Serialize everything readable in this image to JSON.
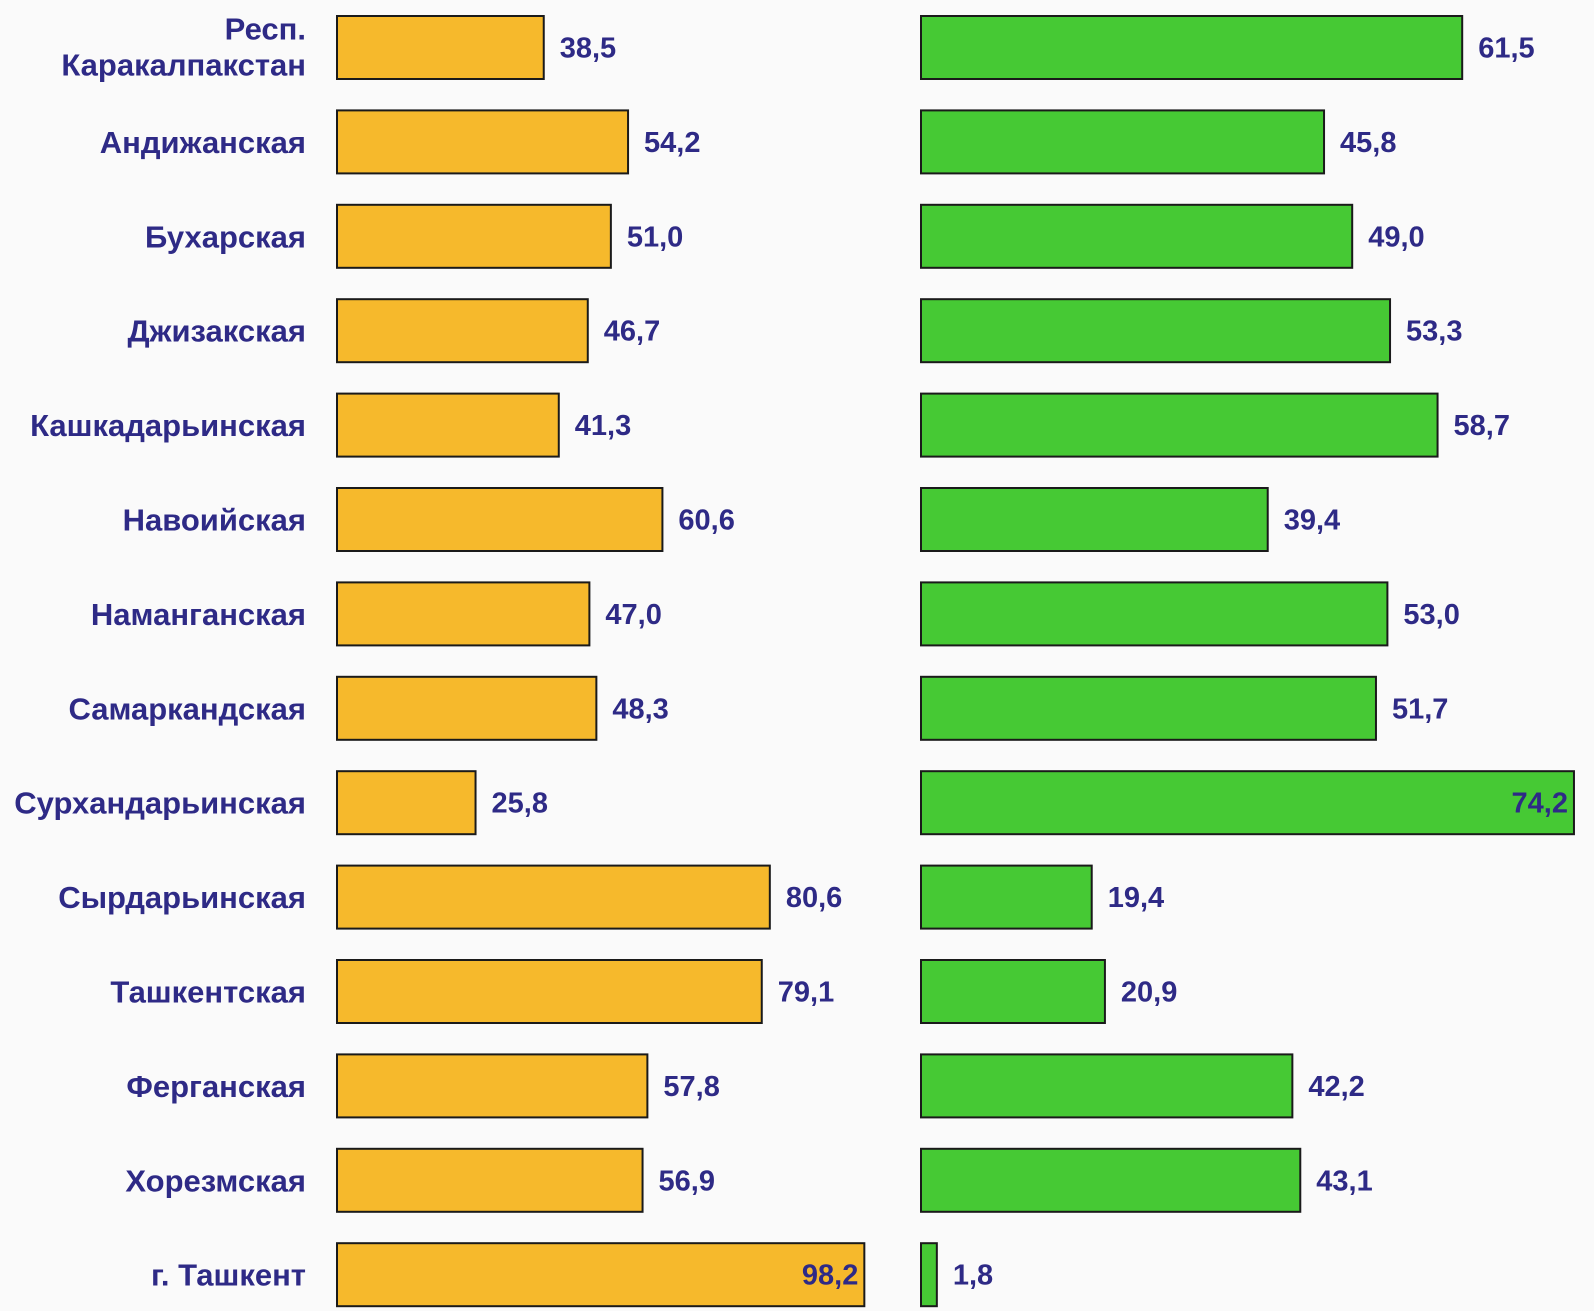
{
  "chart_data": {
    "type": "bar",
    "orientation": "horizontal",
    "categories": [
      [
        "Респ.",
        "Каракалпакстан"
      ],
      [
        "Андижанская"
      ],
      [
        "Бухарская"
      ],
      [
        "Джизакская"
      ],
      [
        "Кашкадарьинская"
      ],
      [
        "Навоийская"
      ],
      [
        "Наманганская"
      ],
      [
        "Самаркандская"
      ],
      [
        "Сурхандарьинская"
      ],
      [
        "Сырдарьинская"
      ],
      [
        "Ташкентская"
      ],
      [
        "Ферганская"
      ],
      [
        "Хорезмская"
      ],
      [
        "г. Ташкент"
      ]
    ],
    "series": [
      {
        "color": "#f6b92c",
        "values": [
          38.5,
          54.2,
          51.0,
          46.7,
          41.3,
          60.6,
          47.0,
          48.3,
          25.8,
          80.6,
          79.1,
          57.8,
          56.9,
          98.2
        ],
        "labels": [
          "38,5",
          "54,2",
          "51,0",
          "46,7",
          "41,3",
          "60,6",
          "47,0",
          "48,3",
          "25,8",
          "80,6",
          "79,1",
          "57,8",
          "56,9",
          "98,2"
        ]
      },
      {
        "color": "#46c934",
        "values": [
          61.5,
          45.8,
          49.0,
          53.3,
          58.7,
          39.4,
          53.0,
          51.7,
          74.2,
          19.4,
          20.9,
          42.2,
          43.1,
          1.8
        ],
        "labels": [
          "61,5",
          "45,8",
          "49,0",
          "53,3",
          "58,7",
          "39,4",
          "53,0",
          "51,7",
          "74,2",
          "19,4",
          "20,9",
          "42,2",
          "43,1",
          "1,8"
        ]
      }
    ],
    "xlim": [
      0,
      100
    ],
    "grid": false,
    "legend": "none",
    "text_color": "#2e2a86",
    "background": "#fafafa"
  }
}
